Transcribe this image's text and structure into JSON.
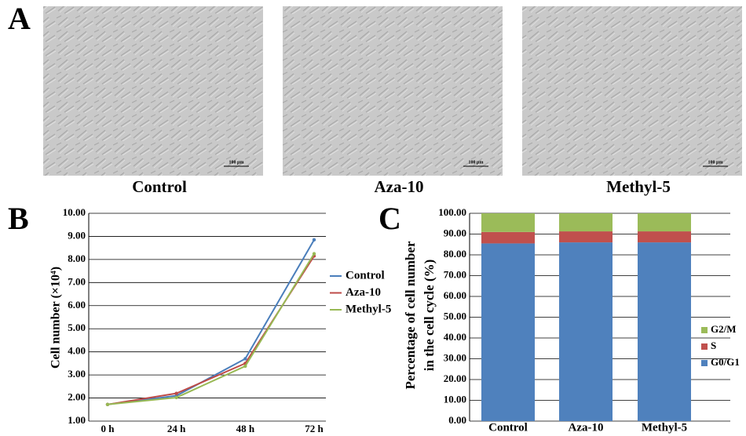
{
  "images": {
    "label": "A",
    "captions": [
      "Control",
      "Aza-10",
      "Methyl-5"
    ],
    "scale_bar": "100 μm"
  },
  "chart_data": [
    {
      "type": "line",
      "label": "B",
      "y_label": "Cell number (×10⁴)",
      "categories": [
        "0 h",
        "24 h",
        "48 h",
        "72 h"
      ],
      "ylim": [
        1,
        10
      ],
      "yticks": [
        {
          "value": 1,
          "label": "1.00"
        },
        {
          "value": 2,
          "label": "2.00"
        },
        {
          "value": 3,
          "label": "3.00"
        },
        {
          "value": 4,
          "label": "4.00"
        },
        {
          "value": 5,
          "label": "5.00"
        },
        {
          "value": 6,
          "label": "6.00"
        },
        {
          "value": 7,
          "label": "7.00"
        },
        {
          "value": 8,
          "label": "8.00"
        },
        {
          "value": 9,
          "label": "9.00"
        },
        {
          "value": 10,
          "label": "10.00"
        }
      ],
      "grid": true,
      "series": [
        {
          "name": "Control",
          "color": "#4a7ebb",
          "values": [
            1.72,
            2.1,
            3.7,
            8.85
          ]
        },
        {
          "name": "Aza-10",
          "color": "#be4b48",
          "values": [
            1.72,
            2.2,
            3.5,
            8.15
          ]
        },
        {
          "name": "Methyl-5",
          "color": "#98b954",
          "values": [
            1.72,
            2.02,
            3.38,
            8.25
          ]
        }
      ]
    },
    {
      "type": "stacked-bar",
      "label": "C",
      "y_label": [
        "Percentage of cell number",
        "in the cell cycle (%)"
      ],
      "categories": [
        "Control",
        "Aza-10",
        "Methyl-5"
      ],
      "ylim": [
        0,
        100
      ],
      "yticks": [
        {
          "value": 0,
          "label": "0.00"
        },
        {
          "value": 10,
          "label": "10.00"
        },
        {
          "value": 20,
          "label": "20.00"
        },
        {
          "value": 30,
          "label": "30.00"
        },
        {
          "value": 40,
          "label": "40.00"
        },
        {
          "value": 50,
          "label": "50.00"
        },
        {
          "value": 60,
          "label": "60.00"
        },
        {
          "value": 70,
          "label": "70.00"
        },
        {
          "value": 80,
          "label": "80.00"
        },
        {
          "value": 90,
          "label": "90.00"
        },
        {
          "value": 100,
          "label": "100.00"
        }
      ],
      "grid": true,
      "series": [
        {
          "name": "G0/G1",
          "color": "#4f81bd",
          "values": [
            85.5,
            86,
            86
          ]
        },
        {
          "name": "S",
          "color": "#c0504d",
          "values": [
            5.5,
            5.3,
            5.3
          ]
        },
        {
          "name": "G2/M",
          "color": "#9bbb59",
          "values": [
            9,
            8.7,
            8.7
          ]
        }
      ]
    }
  ]
}
